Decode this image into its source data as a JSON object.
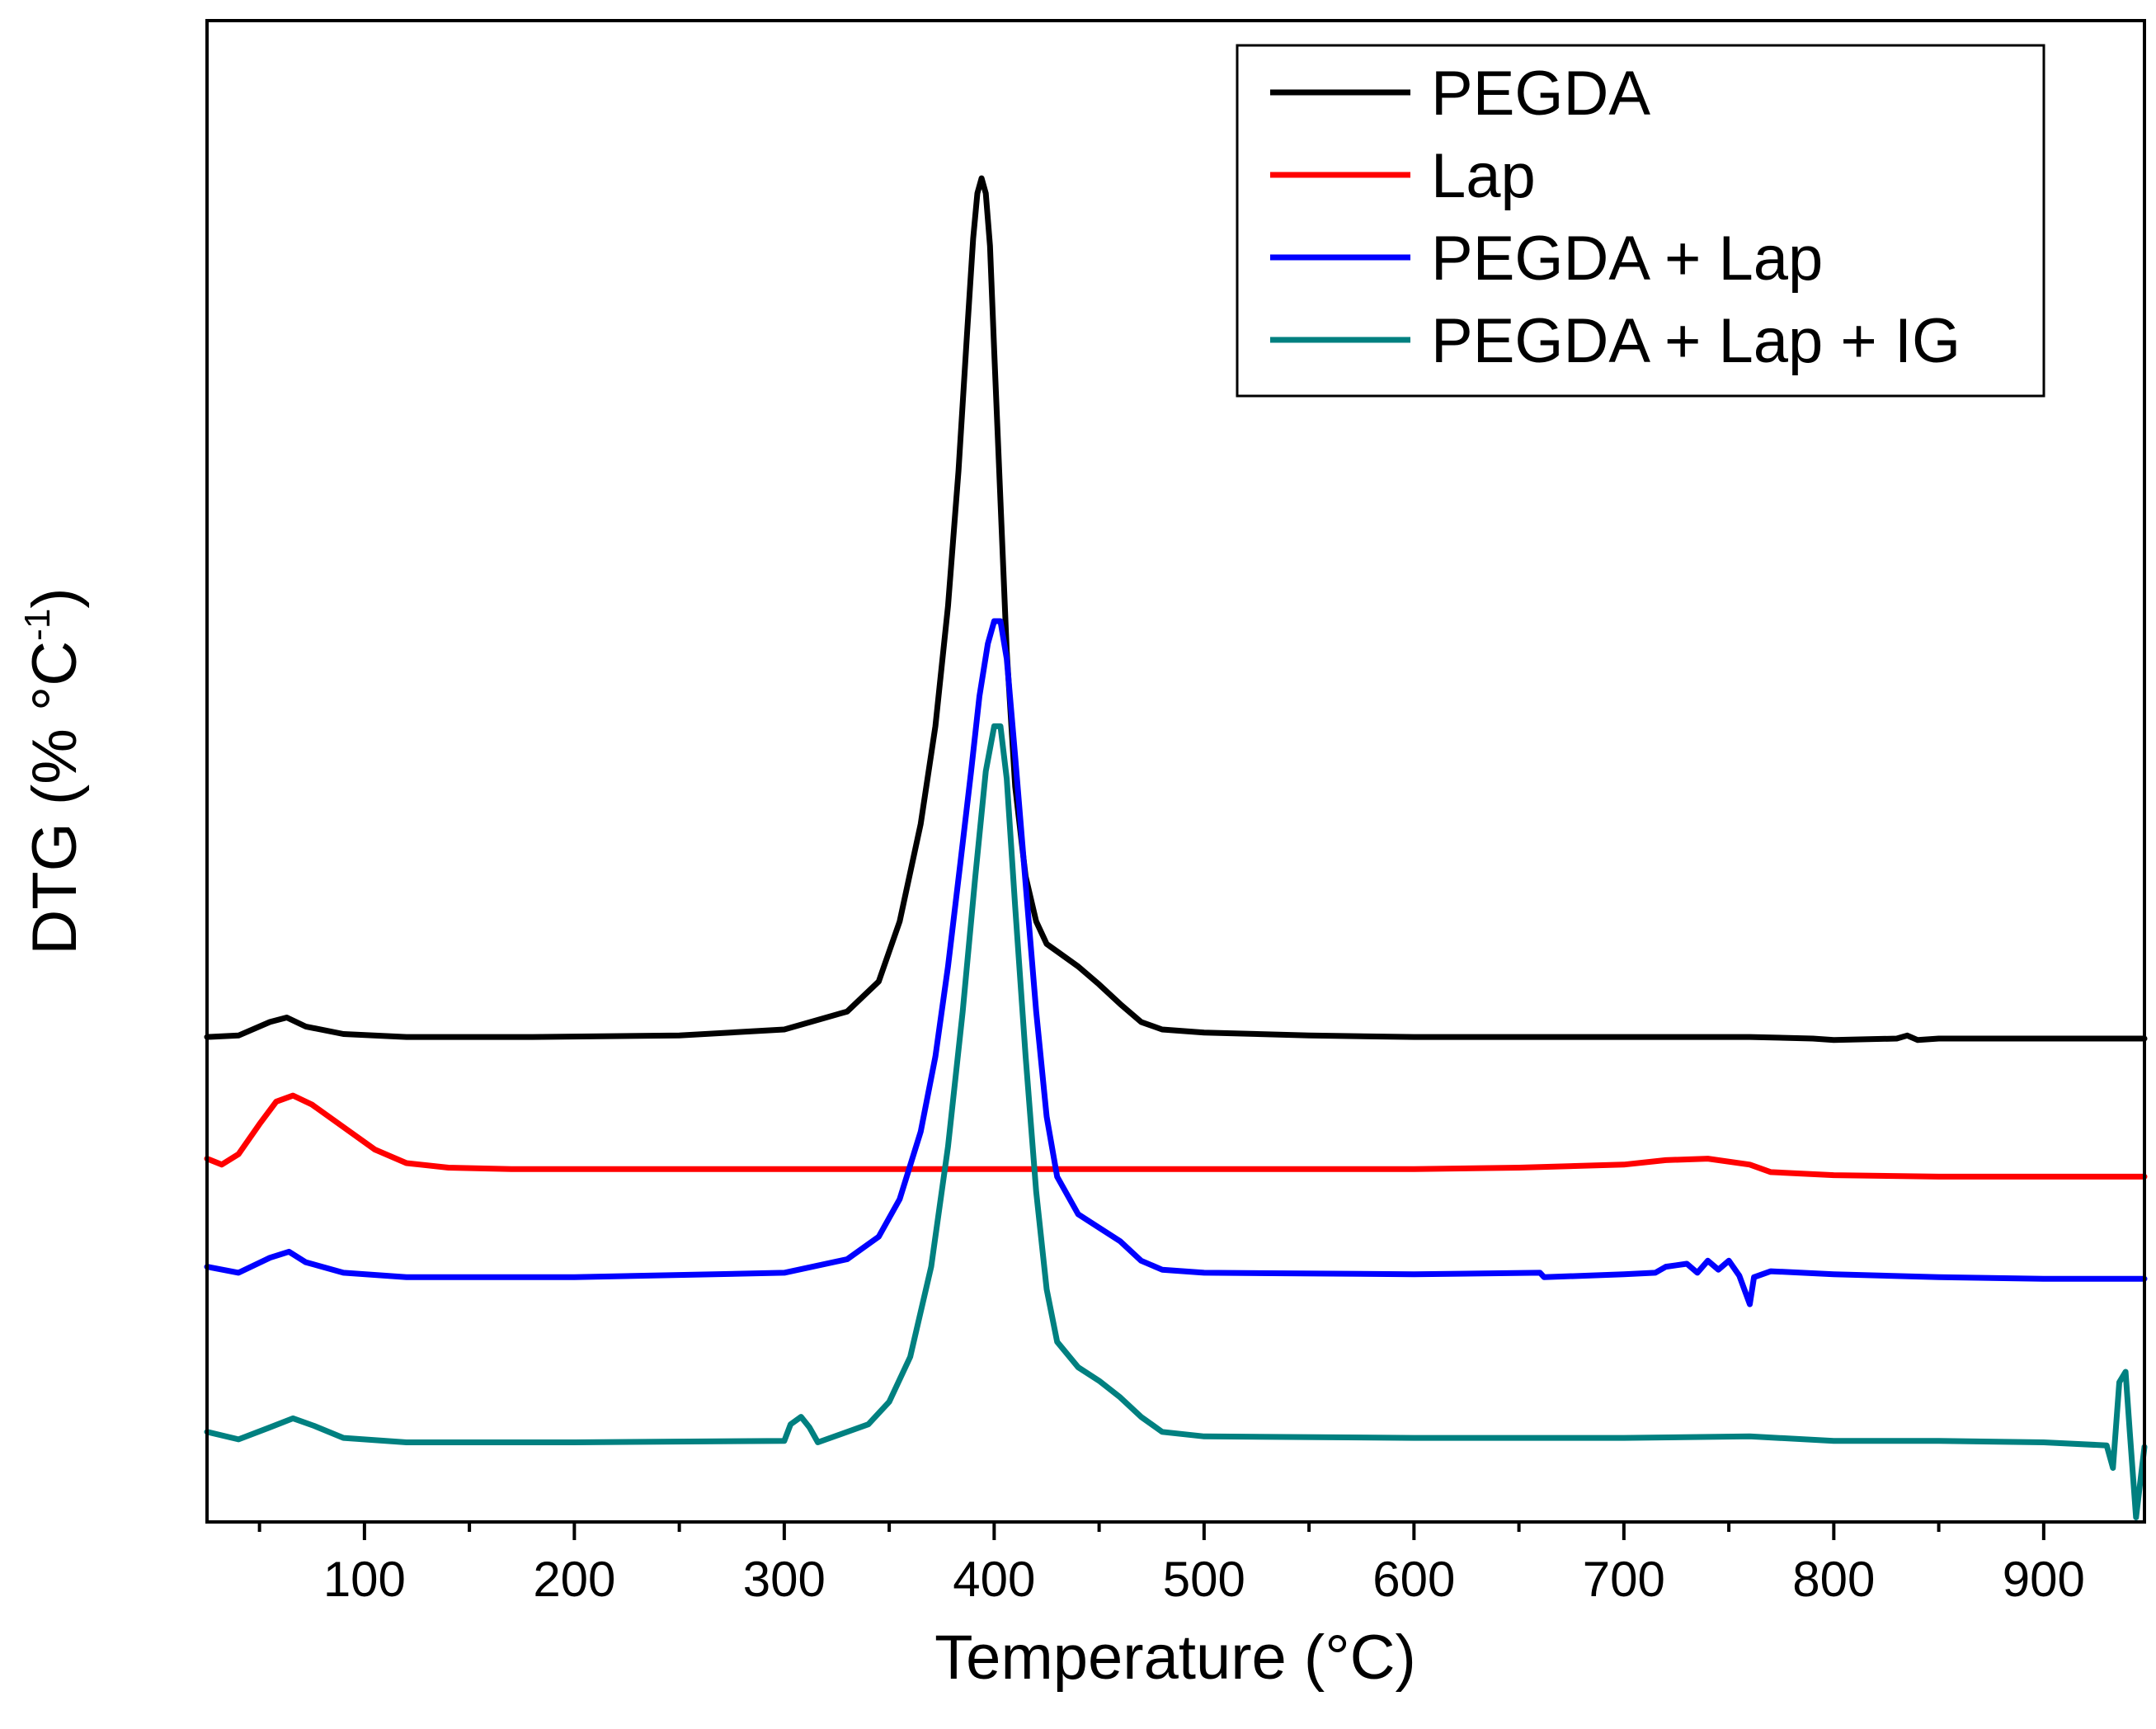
{
  "chart_data": {
    "type": "line",
    "title": "",
    "xlabel": "Temperature (°C)",
    "ylabel": {
      "prefix": "DTG (% °C",
      "superscript": "-1",
      "suffix": ")"
    },
    "xlim": [
      25,
      948
    ],
    "ylim": [
      0,
      100
    ],
    "y_ticks_shown": false,
    "x_ticks": [
      100,
      200,
      300,
      400,
      500,
      600,
      700,
      800,
      900
    ],
    "x_tick_labels": [
      "100",
      "200",
      "300",
      "400",
      "500",
      "600",
      "700",
      "800",
      "900"
    ],
    "x_minor_ticks": [
      50,
      150,
      250,
      350,
      450,
      550,
      650,
      750,
      850
    ],
    "legend_position": "top-right",
    "series": [
      {
        "name": "PEGDA",
        "color": "#000000",
        "x": [
          25,
          40,
          55,
          63,
          72,
          90,
          120,
          180,
          250,
          300,
          330,
          345,
          355,
          365,
          372,
          378,
          383,
          387,
          390,
          392,
          394,
          396,
          398,
          400,
          403,
          406,
          410,
          415,
          420,
          425,
          430,
          440,
          450,
          460,
          470,
          480,
          500,
          550,
          600,
          700,
          760,
          790,
          800,
          830,
          835,
          840,
          850,
          900,
          948
        ],
        "y": [
          32.3,
          32.4,
          33.3,
          33.6,
          33.0,
          32.5,
          32.3,
          32.3,
          32.4,
          32.8,
          34.0,
          36.0,
          40.0,
          46.5,
          53.0,
          61.0,
          70.0,
          79.0,
          85.5,
          88.5,
          89.5,
          88.5,
          85.0,
          78.0,
          68.0,
          58.0,
          49.0,
          43.0,
          40.0,
          38.5,
          38.0,
          37.0,
          35.8,
          34.5,
          33.3,
          32.8,
          32.6,
          32.4,
          32.3,
          32.3,
          32.3,
          32.2,
          32.1,
          32.2,
          32.4,
          32.1,
          32.2,
          32.2,
          32.2
        ]
      },
      {
        "name": "Lap",
        "color": "#ff0000",
        "x": [
          25,
          32,
          40,
          50,
          58,
          66,
          75,
          90,
          105,
          120,
          140,
          170,
          200,
          300,
          400,
          500,
          600,
          650,
          700,
          720,
          740,
          760,
          770,
          800,
          850,
          900,
          948
        ],
        "y": [
          24.2,
          23.8,
          24.5,
          26.5,
          28.0,
          28.4,
          27.8,
          26.3,
          24.8,
          23.9,
          23.6,
          23.5,
          23.5,
          23.5,
          23.5,
          23.5,
          23.5,
          23.6,
          23.8,
          24.1,
          24.2,
          23.8,
          23.3,
          23.1,
          23.0,
          23.0,
          23.0
        ]
      },
      {
        "name": "PEGDA + Lap",
        "color": "#0000ff",
        "x": [
          25,
          40,
          55,
          64,
          72,
          90,
          120,
          200,
          300,
          330,
          345,
          355,
          365,
          372,
          378,
          384,
          389,
          393,
          397,
          400,
          403,
          406,
          410,
          415,
          420,
          425,
          430,
          440,
          450,
          460,
          470,
          480,
          500,
          600,
          660,
          662,
          700,
          715,
          720,
          730,
          735,
          740,
          745,
          750,
          755,
          760,
          762,
          770,
          800,
          850,
          900,
          948
        ],
        "y": [
          17.0,
          16.6,
          17.6,
          18.0,
          17.3,
          16.6,
          16.3,
          16.3,
          16.6,
          17.5,
          19.0,
          21.5,
          26.0,
          31.0,
          37.0,
          44.0,
          50.0,
          55.0,
          58.5,
          60.0,
          60.0,
          57.5,
          51.0,
          42.5,
          34.0,
          27.0,
          23.0,
          20.5,
          19.6,
          18.7,
          17.4,
          16.8,
          16.6,
          16.5,
          16.6,
          16.3,
          16.5,
          16.6,
          17.0,
          17.2,
          16.6,
          17.4,
          16.8,
          17.4,
          16.4,
          14.5,
          16.3,
          16.7,
          16.5,
          16.3,
          16.2,
          16.2
        ]
      },
      {
        "name": "PEGDA + Lap + IG",
        "color": "#008080",
        "x": [
          25,
          40,
          55,
          66,
          76,
          90,
          120,
          200,
          300,
          303,
          308,
          312,
          316,
          340,
          350,
          360,
          370,
          378,
          385,
          391,
          396,
          400,
          403,
          406,
          410,
          415,
          420,
          425,
          430,
          440,
          450,
          460,
          470,
          480,
          500,
          600,
          700,
          760,
          800,
          850,
          900,
          930,
          933,
          936,
          939,
          941,
          944,
          948
        ],
        "y": [
          6.0,
          5.5,
          6.3,
          6.9,
          6.4,
          5.6,
          5.3,
          5.3,
          5.4,
          6.5,
          7.0,
          6.3,
          5.3,
          6.5,
          8.0,
          11.0,
          17.0,
          25.0,
          34.0,
          43.0,
          50.0,
          53.0,
          53.0,
          49.5,
          41.0,
          31.0,
          22.0,
          15.5,
          12.0,
          10.3,
          9.4,
          8.3,
          7.0,
          6.0,
          5.7,
          5.6,
          5.6,
          5.7,
          5.4,
          5.4,
          5.3,
          5.1,
          3.6,
          9.3,
          10.0,
          6.0,
          0.3,
          5.0
        ]
      }
    ]
  }
}
